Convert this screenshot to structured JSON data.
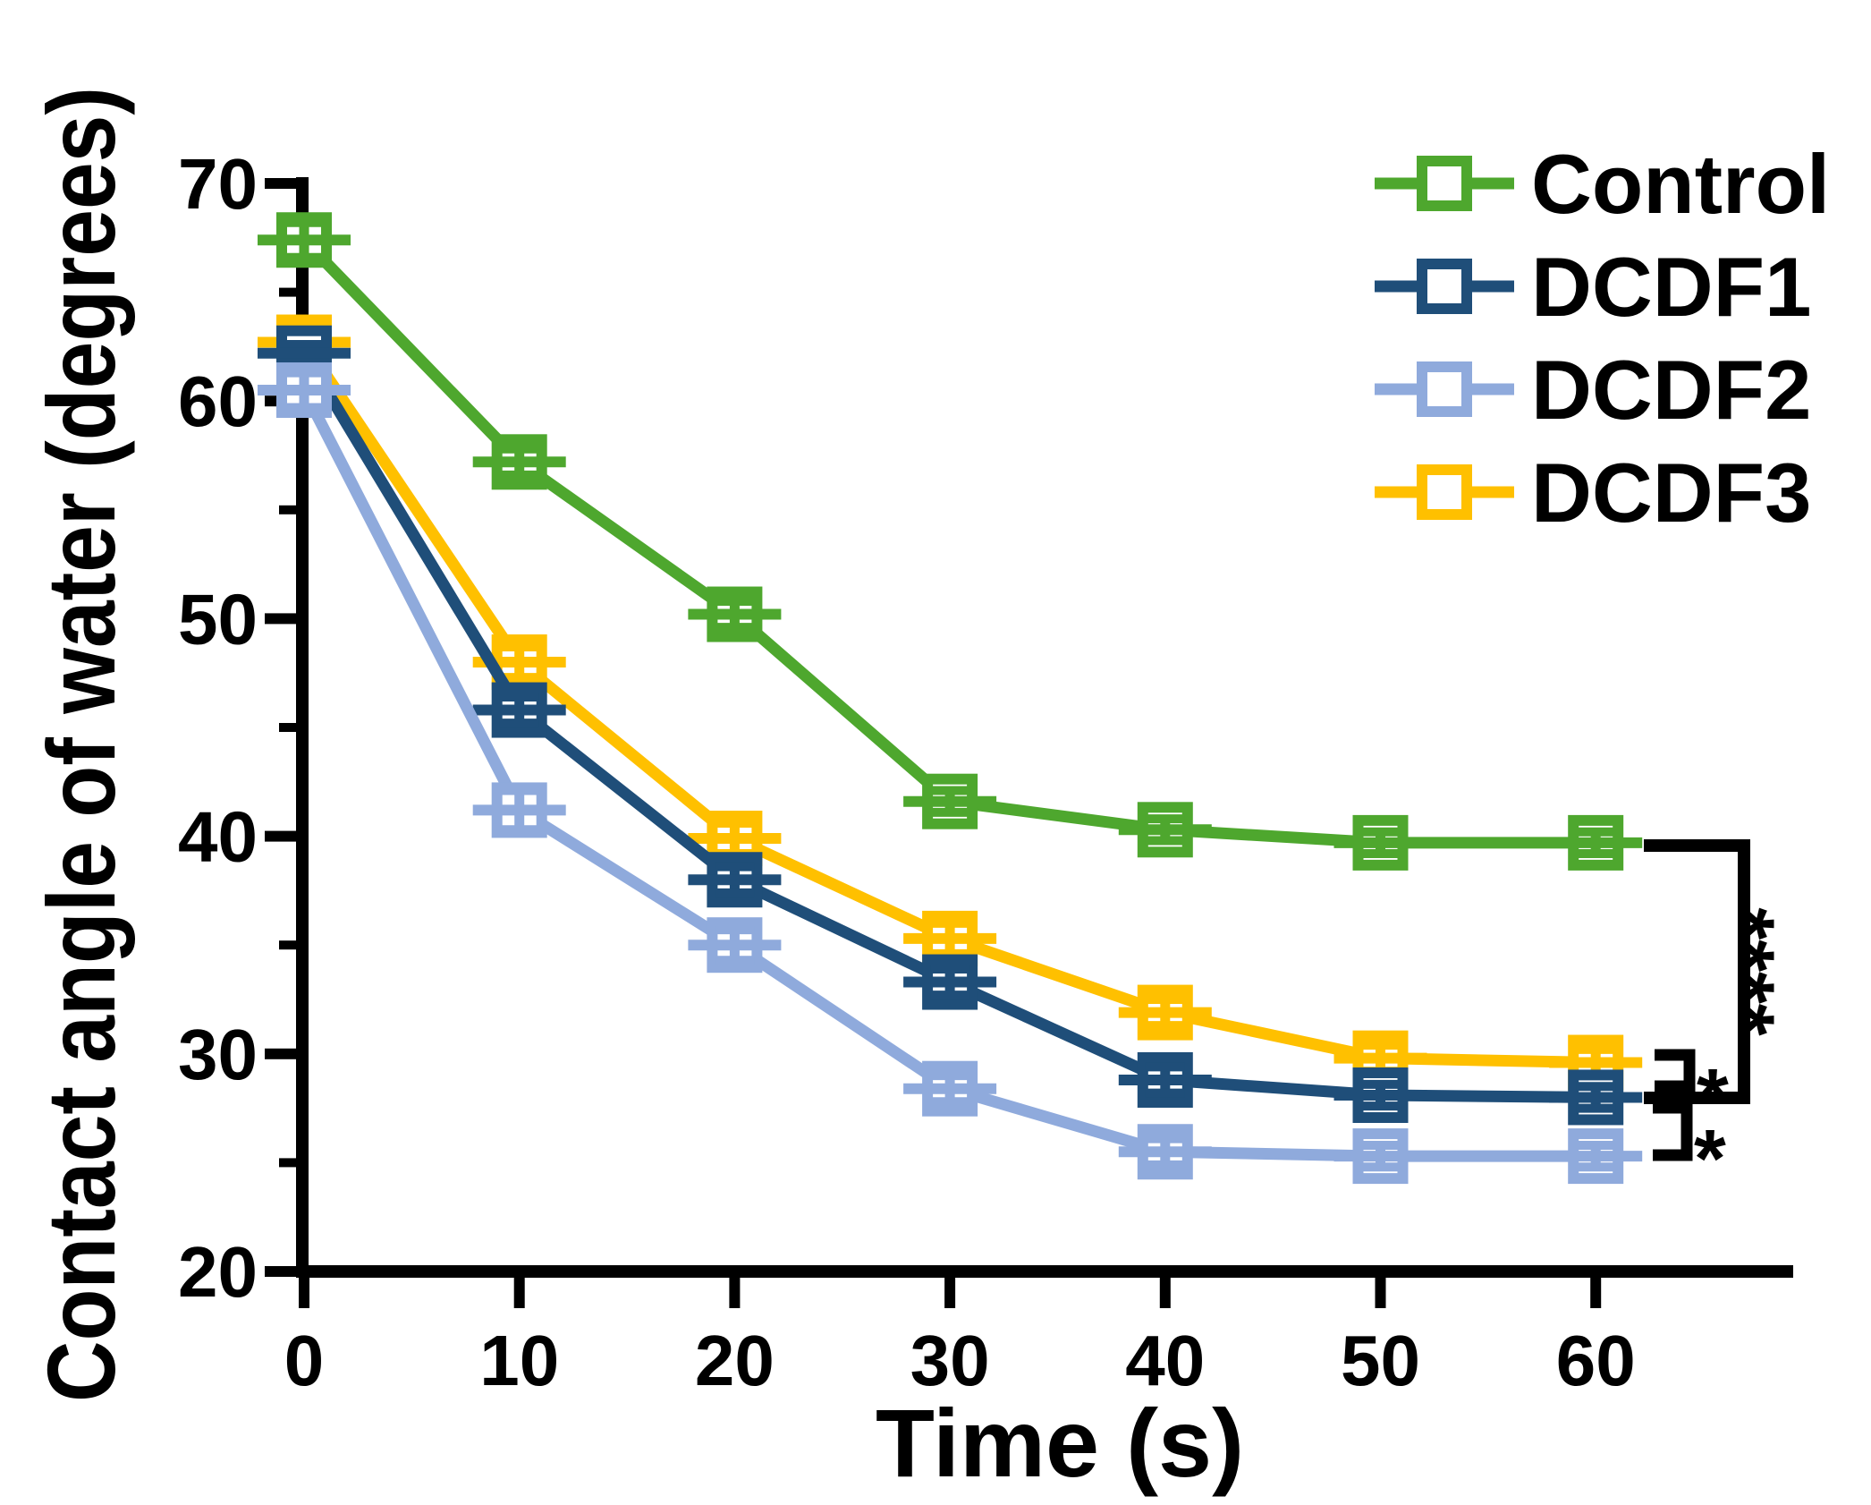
{
  "chart_data": {
    "type": "line",
    "title": "",
    "xlabel": "Time (s)",
    "ylabel": "Contact angle of water (degrees)",
    "x": [
      0,
      10,
      20,
      30,
      40,
      50,
      60
    ],
    "x_tick_labels": [
      "0",
      "10",
      "20",
      "30",
      "40",
      "50",
      "60"
    ],
    "y_ticks_major": [
      70,
      60,
      50,
      40,
      30,
      20
    ],
    "y_ticks_minor": [
      65,
      55,
      45,
      35,
      25
    ],
    "xlim": [
      0,
      69
    ],
    "ylim": [
      20,
      70
    ],
    "grid": "off",
    "legend_position": "top-right",
    "marker": "open-square-with-error-bars",
    "axis_color": "#000000",
    "series": [
      {
        "name": "Control",
        "color": "#4EA72E",
        "values": [
          67.4,
          57.2,
          50.2,
          41.6,
          40.3,
          39.7,
          39.7
        ],
        "errors": [
          0.8,
          0.6,
          0.6,
          0.5,
          0.5,
          0.5,
          0.5
        ]
      },
      {
        "name": "DCDF1",
        "color": "#1F4E79",
        "values": [
          62.2,
          45.8,
          38.0,
          33.3,
          28.8,
          28.1,
          28.0
        ],
        "errors": [
          0.4,
          0.6,
          0.6,
          0.6,
          0.6,
          0.5,
          0.5
        ]
      },
      {
        "name": "DCDF2",
        "color": "#8FAADC",
        "values": [
          60.5,
          41.2,
          35.0,
          28.4,
          25.5,
          25.3,
          25.3
        ],
        "errors": [
          0.8,
          0.9,
          0.7,
          0.6,
          0.6,
          0.5,
          0.5
        ]
      },
      {
        "name": "DCDF3",
        "color": "#FFC000",
        "values": [
          62.7,
          48.0,
          39.9,
          35.3,
          31.9,
          29.8,
          29.6
        ],
        "errors": [
          0.6,
          0.7,
          0.7,
          0.7,
          0.6,
          0.6,
          0.6
        ]
      }
    ],
    "legend_order": [
      "Control",
      "DCDF1",
      "DCDF2",
      "DCDF3"
    ],
    "significance": [
      {
        "label": "****",
        "between": [
          "Control",
          "DCDF1"
        ]
      },
      {
        "label": "*",
        "between": [
          "DCDF3",
          "DCDF1"
        ]
      },
      {
        "label": "*",
        "between": [
          "DCDF1",
          "DCDF2"
        ]
      }
    ]
  }
}
